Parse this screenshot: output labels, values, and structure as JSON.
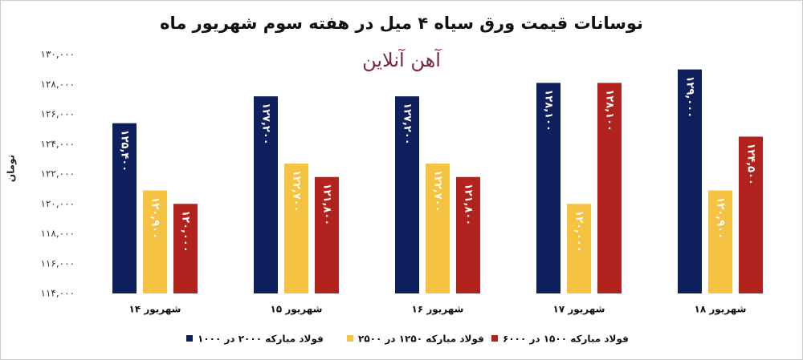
{
  "chart_data": {
    "type": "bar",
    "title": "نوسانات قیمت ورق سیاه ۴ میل در هفته سوم شهریور ماه",
    "watermark": "آهن آنلاین",
    "y_label": "تومان",
    "categories": [
      "۱۴ شهریور",
      "۱۵ شهریور",
      "۱۶ شهریور",
      "۱۷ شهریور",
      "۱۸ شهریور"
    ],
    "series": [
      {
        "name": "فولاد مبارکه ۲۰۰۰ در ۱۰۰۰",
        "color": "#0d1f5c",
        "values": [
          125400,
          127200,
          127200,
          128100,
          129000
        ],
        "value_labels": [
          "۱۲۵,۴۰۰",
          "۱۲۷,۲۰۰",
          "۱۲۷,۲۰۰",
          "۱۲۸,۱۰۰",
          "۱۲۹,۰۰۰"
        ]
      },
      {
        "name": "فولاد مبارکه ۱۲۵۰ در ۲۵۰۰",
        "color": "#f5c242",
        "values": [
          120900,
          122700,
          122700,
          120000,
          120900
        ],
        "value_labels": [
          "۱۲۰,۹۰۰",
          "۱۲۲,۷۰۰",
          "۱۲۲,۷۰۰",
          "۱۲۰,۰۰۰",
          "۱۲۰,۹۰۰"
        ]
      },
      {
        "name": "فولاد مبارکه ۱۵۰۰ در ۶۰۰۰",
        "color": "#b3231d",
        "values": [
          120000,
          121800,
          121800,
          128100,
          124500
        ],
        "value_labels": [
          "۱۲۰,۰۰۰",
          "۱۲۱,۸۰۰",
          "۱۲۱,۸۰۰",
          "۱۲۸,۱۰۰",
          "۱۲۴,۵۰۰"
        ]
      }
    ],
    "ylim": [
      114000,
      130000
    ],
    "yticks": [
      {
        "value": 114000,
        "label": "۱۱۴,۰۰۰"
      },
      {
        "value": 116000,
        "label": "۱۱۶,۰۰۰"
      },
      {
        "value": 118000,
        "label": "۱۱۸,۰۰۰"
      },
      {
        "value": 120000,
        "label": "۱۲۰,۰۰۰"
      },
      {
        "value": 122000,
        "label": "۱۲۲,۰۰۰"
      },
      {
        "value": 124000,
        "label": "۱۲۴,۰۰۰"
      },
      {
        "value": 126000,
        "label": "۱۲۶,۰۰۰"
      },
      {
        "value": 128000,
        "label": "۱۲۸,۰۰۰"
      },
      {
        "value": 130000,
        "label": "۱۳۰,۰۰۰"
      }
    ],
    "grid": false
  }
}
